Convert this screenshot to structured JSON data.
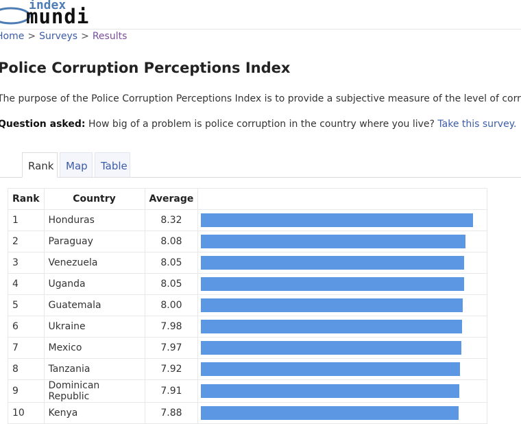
{
  "logo": {
    "top": "index",
    "bottom": "mundi"
  },
  "breadcrumb": {
    "home": "Home",
    "surveys": "Surveys",
    "results": "Results",
    "separator": ">"
  },
  "page": {
    "title": "Police Corruption Perceptions Index",
    "intro": "The purpose of the Police Corruption Perceptions Index is to provide a subjective measure of the level of corruption",
    "question_label": "Question asked:",
    "question_text": "How big of a problem is police corruption in the country where you live?",
    "survey_link": "Take this survey."
  },
  "tabs": [
    {
      "label": "Rank",
      "active": true
    },
    {
      "label": "Map",
      "active": false
    },
    {
      "label": "Table",
      "active": false
    }
  ],
  "table": {
    "headers": {
      "rank": "Rank",
      "country": "Country",
      "average": "Average"
    },
    "bar_color": "#5b97e2",
    "rows": [
      {
        "rank": "1",
        "country": "Honduras",
        "average": "8.32"
      },
      {
        "rank": "2",
        "country": "Paraguay",
        "average": "8.08"
      },
      {
        "rank": "3",
        "country": "Venezuela",
        "average": "8.05"
      },
      {
        "rank": "4",
        "country": "Uganda",
        "average": "8.05"
      },
      {
        "rank": "5",
        "country": "Guatemala",
        "average": "8.00"
      },
      {
        "rank": "6",
        "country": "Ukraine",
        "average": "7.98"
      },
      {
        "rank": "7",
        "country": "Mexico",
        "average": "7.97"
      },
      {
        "rank": "8",
        "country": "Tanzania",
        "average": "7.92"
      },
      {
        "rank": "9",
        "country": "Dominican Republic",
        "average": "7.91"
      },
      {
        "rank": "10",
        "country": "Kenya",
        "average": "7.88"
      }
    ]
  }
}
